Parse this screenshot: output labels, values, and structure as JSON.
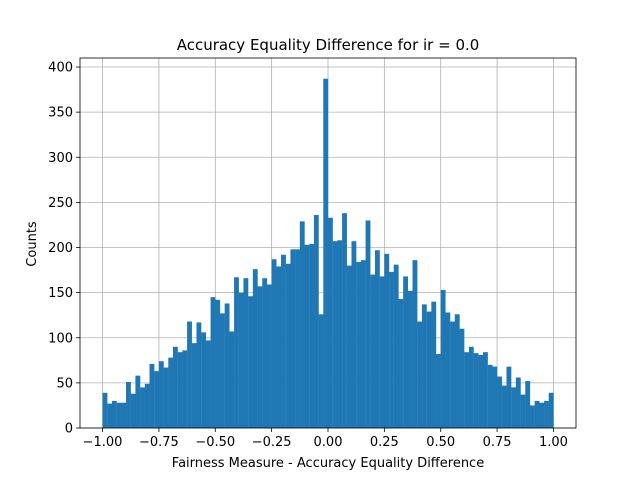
{
  "chart_data": {
    "type": "bar",
    "title": "Accuracy Equality Difference for ir = 0.0",
    "xlabel": "Fairness Measure - Accuracy Equality Difference",
    "ylabel": "Counts",
    "xlim": [
      -1.1,
      1.1
    ],
    "ylim": [
      0,
      410
    ],
    "grid": true,
    "bar_color": "#1f77b4",
    "x_ticks": [
      -1.0,
      -0.75,
      -0.5,
      -0.25,
      0.0,
      0.25,
      0.5,
      0.75,
      1.0
    ],
    "x_tick_labels": [
      "−1.00",
      "−0.75",
      "−0.50",
      "−0.25",
      "0.00",
      "0.25",
      "0.50",
      "0.75",
      "1.00"
    ],
    "y_ticks": [
      0,
      50,
      100,
      150,
      200,
      250,
      300,
      350,
      400
    ],
    "y_tick_labels": [
      "0",
      "50",
      "100",
      "150",
      "200",
      "250",
      "300",
      "350",
      "400"
    ],
    "bin_start": -1.0,
    "bin_end": 1.0,
    "values": [
      39,
      27,
      30,
      28,
      28,
      51,
      38,
      58,
      45,
      49,
      71,
      63,
      74,
      67,
      78,
      90,
      84,
      86,
      118,
      94,
      117,
      106,
      97,
      145,
      142,
      127,
      138,
      107,
      167,
      150,
      166,
      146,
      176,
      157,
      166,
      159,
      187,
      179,
      192,
      182,
      198,
      198,
      229,
      203,
      204,
      236,
      126,
      387,
      233,
      207,
      208,
      238,
      180,
      207,
      184,
      186,
      230,
      170,
      197,
      168,
      193,
      173,
      181,
      143,
      168,
      152,
      186,
      118,
      137,
      129,
      140,
      82,
      153,
      128,
      118,
      126,
      110,
      84,
      90,
      83,
      81,
      84,
      70,
      68,
      57,
      47,
      68,
      45,
      56,
      37,
      52,
      25,
      30,
      28,
      30,
      39
    ]
  }
}
